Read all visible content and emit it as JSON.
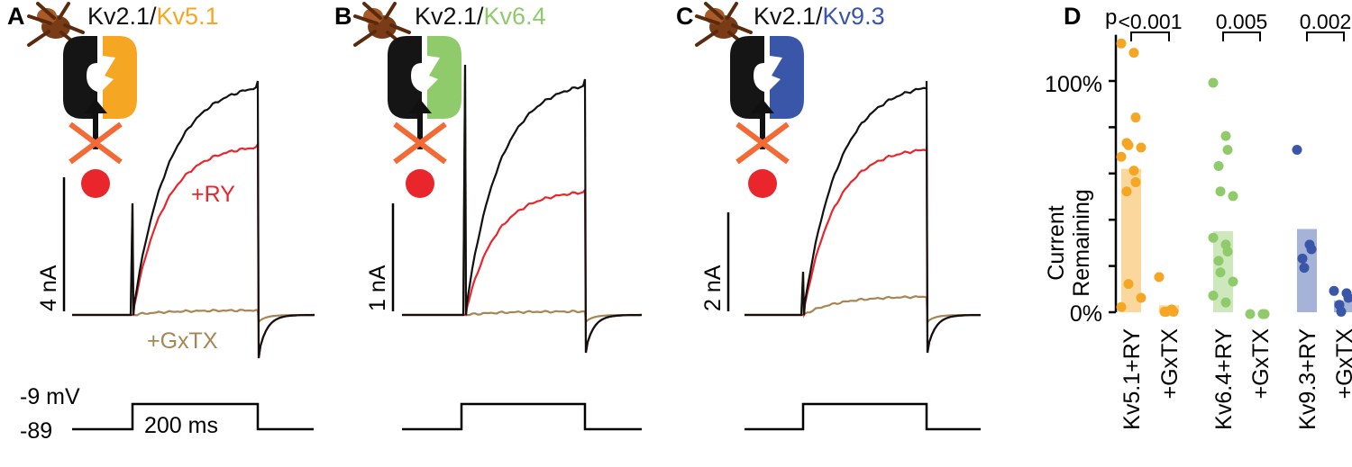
{
  "colors": {
    "control": "#111111",
    "ry": "#e8262c",
    "gxtx": "#a68654",
    "kv51": "#f5a623",
    "kv64": "#8fcb6a",
    "kv93": "#3a56a8",
    "cross": "#f26a36",
    "dot": "#e8262c"
  },
  "panels": [
    {
      "letter": "A",
      "title_a": "Kv2.1/",
      "title_b": "Kv5.1",
      "title_b_color": "#f5a623",
      "scale_label": "4 nA",
      "ry_label": "+RY",
      "gxtx_label": "+GxTX",
      "ry_level": 0.73,
      "gxtx_level": 0.02
    },
    {
      "letter": "B",
      "title_a": "Kv2.1/",
      "title_b": "Kv6.4",
      "title_b_color": "#8fcb6a",
      "scale_label": "1 nA",
      "ry_label": "",
      "gxtx_label": "",
      "ry_level": 0.53,
      "gxtx_level": 0.015
    },
    {
      "letter": "C",
      "title_a": "Kv2.1/",
      "title_b": "Kv9.3",
      "title_b_color": "#3a56a8",
      "scale_label": "2 nA",
      "ry_label": "",
      "gxtx_label": "",
      "ry_level": 0.72,
      "gxtx_level": 0.08
    }
  ],
  "voltage_protocol": {
    "holding_label": "-89",
    "step_label": "-9 mV",
    "duration_label": "200 ms"
  },
  "panel_d": {
    "letter": "D",
    "p_label": "p",
    "ylabel_line1": "Current",
    "ylabel_line2": "Remaining",
    "tick_labels": [
      "100%",
      "0%"
    ],
    "p_values": [
      "<0.001",
      "0.005",
      "0.002"
    ]
  },
  "chart_data": {
    "type": "bar",
    "ylabel": "Current Remaining",
    "ylim": [
      -0.02,
      1.2
    ],
    "yticks": [
      0,
      0.2,
      0.4,
      0.6,
      0.8,
      1.0
    ],
    "grid": false,
    "categories": [
      "Kv5.1+RY",
      "+GxTX",
      "Kv6.4+RY",
      "+GxTX",
      "Kv9.3+RY",
      "+GxTX"
    ],
    "series": [
      {
        "values": [
          0.62,
          0.03,
          0.35,
          0.01,
          0.36,
          0.05
        ],
        "colors": [
          "#f5a623",
          "#f5a623",
          "#8fcb6a",
          "#8fcb6a",
          "#3a56a8",
          "#3a56a8"
        ],
        "points": [
          [
            1.17,
            1.13,
            0.85,
            0.74,
            0.73,
            0.72,
            0.68,
            0.62,
            0.57,
            0.53,
            0.13,
            0.07,
            0.03
          ],
          [
            0.16,
            0.02,
            0.01,
            0.01,
            0.01
          ],
          [
            1.0,
            0.77,
            0.71,
            0.64,
            0.53,
            0.51,
            0.33,
            0.3,
            0.27,
            0.23,
            0.18,
            0.14,
            0.08,
            0.05
          ],
          [
            0.0,
            0.0,
            0.0
          ],
          [
            0.71,
            0.3,
            0.28,
            0.24,
            0.2
          ],
          [
            0.1,
            0.09,
            0.07,
            0.04,
            0.01
          ]
        ]
      }
    ],
    "comparisons": [
      {
        "groups": [
          0,
          1
        ],
        "p": "<0.001"
      },
      {
        "groups": [
          2,
          3
        ],
        "p": "0.005"
      },
      {
        "groups": [
          4,
          5
        ],
        "p": "0.002"
      }
    ]
  }
}
